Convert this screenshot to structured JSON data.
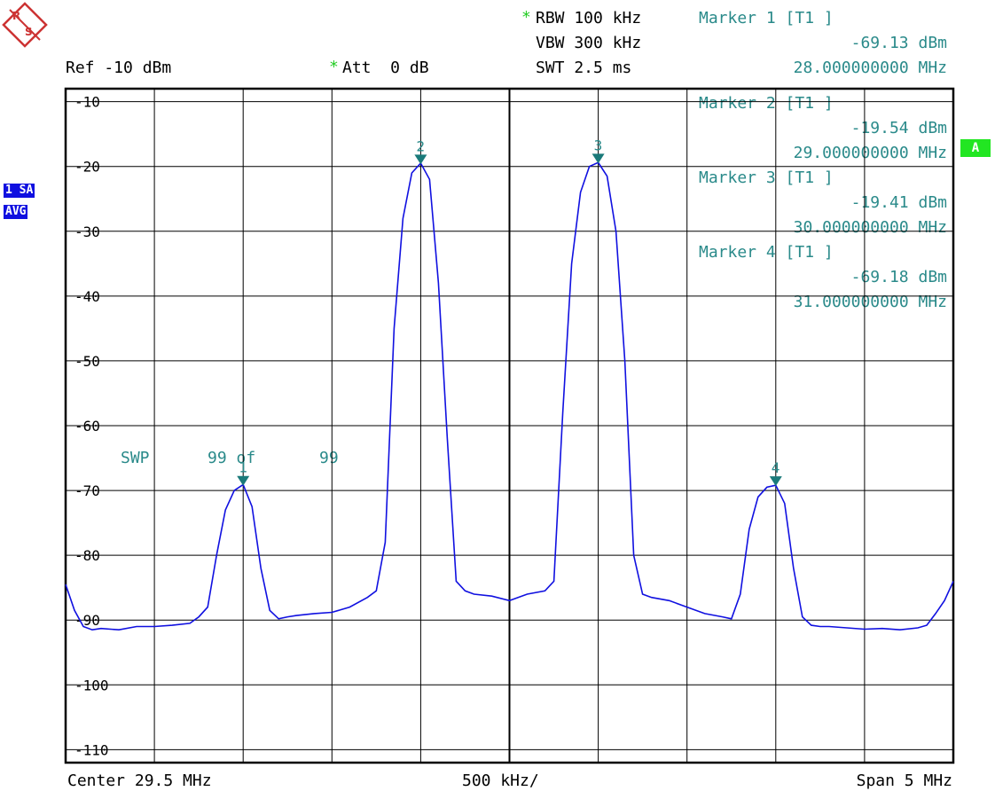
{
  "header": {
    "rbw": "RBW 100 kHz",
    "vbw": "VBW 300 kHz",
    "swt": "SWT 2.5 ms",
    "ref": "Ref -10 dBm",
    "att": "Att  0 dB",
    "star": "*"
  },
  "markers": [
    {
      "label": "Marker 1 [T1 ]",
      "level": "-69.13 dBm",
      "freq": "28.000000000 MHz",
      "num": "1",
      "x_mhz": 28.0,
      "y_dbm": -69.13
    },
    {
      "label": "Marker 2 [T1 ]",
      "level": "-19.54 dBm",
      "freq": "29.000000000 MHz",
      "num": "2",
      "x_mhz": 29.0,
      "y_dbm": -19.54
    },
    {
      "label": "Marker 3 [T1 ]",
      "level": "-19.41 dBm",
      "freq": "30.000000000 MHz",
      "num": "3",
      "x_mhz": 30.0,
      "y_dbm": -19.41
    },
    {
      "label": "Marker 4 [T1 ]",
      "level": "-69.18 dBm",
      "freq": "31.000000000 MHz",
      "num": "4",
      "x_mhz": 31.0,
      "y_dbm": -69.18
    }
  ],
  "sweep": {
    "swp": "SWP",
    "count": "99 of",
    "total": "99"
  },
  "side_badges": {
    "trace": "1 SA",
    "detector": "AVG",
    "status": "A"
  },
  "footer": {
    "center": "Center 29.5 MHz",
    "div": "500 kHz/",
    "span": "Span 5 MHz"
  },
  "colors": {
    "trace": "#1010e0",
    "marker": "#1a7a7a",
    "grid": "#000000",
    "text_teal": "#2a8a8a"
  },
  "chart_data": {
    "type": "line",
    "xlim": [
      27.0,
      32.0
    ],
    "ylim": [
      -112,
      -8
    ],
    "y_ticks": [
      -10,
      -20,
      -30,
      -40,
      -50,
      -60,
      -70,
      -80,
      -90,
      -100,
      -110
    ],
    "y_tick_labels": [
      "-10",
      "-20",
      "-30",
      "-40",
      "-50",
      "-60",
      "-70",
      "-80",
      "-90",
      "-100",
      "-110"
    ],
    "series": [
      {
        "x": [
          27.0,
          27.05,
          27.1,
          27.15,
          27.2,
          27.3,
          27.4,
          27.5,
          27.6,
          27.7,
          27.75,
          27.8,
          27.85,
          27.9,
          27.95,
          28.0,
          28.05,
          28.1,
          28.15,
          28.2,
          28.25,
          28.3,
          28.4,
          28.5,
          28.6,
          28.7,
          28.75,
          28.8,
          28.85,
          28.9,
          28.95,
          29.0,
          29.05,
          29.1,
          29.15,
          29.2,
          29.25,
          29.3,
          29.4,
          29.5,
          29.6,
          29.7,
          29.75,
          29.8,
          29.85,
          29.9,
          29.95,
          30.0,
          30.05,
          30.1,
          30.15,
          30.2,
          30.25,
          30.3,
          30.4,
          30.5,
          30.6,
          30.7,
          30.75,
          30.8,
          30.85,
          30.9,
          30.95,
          31.0,
          31.05,
          31.1,
          31.15,
          31.2,
          31.25,
          31.3,
          31.4,
          31.5,
          31.6,
          31.7,
          31.8,
          31.85,
          31.9,
          31.95,
          32.0
        ],
        "y": [
          -84.5,
          -88.5,
          -91.0,
          -91.5,
          -91.3,
          -91.5,
          -91.0,
          -91.0,
          -90.8,
          -90.5,
          -89.5,
          -88.0,
          -80.0,
          -73.0,
          -70.0,
          -69.1,
          -72.5,
          -82.0,
          -88.5,
          -89.8,
          -89.5,
          -89.3,
          -89.0,
          -88.8,
          -88.0,
          -86.5,
          -85.5,
          -78.0,
          -45.0,
          -28.0,
          -21.0,
          -19.5,
          -22.0,
          -38.0,
          -62.0,
          -84.0,
          -85.5,
          -86.0,
          -86.3,
          -87.0,
          -86.0,
          -85.5,
          -84.0,
          -58.0,
          -35.0,
          -24.0,
          -20.0,
          -19.4,
          -21.5,
          -30.0,
          -50.0,
          -80.0,
          -86.0,
          -86.5,
          -87.0,
          -88.0,
          -89.0,
          -89.5,
          -89.8,
          -86.0,
          -76.0,
          -71.0,
          -69.5,
          -69.2,
          -72.0,
          -82.0,
          -89.5,
          -90.8,
          -91.0,
          -91.0,
          -91.2,
          -91.4,
          -91.3,
          -91.5,
          -91.2,
          -90.8,
          -89.0,
          -87.0,
          -84.0
        ]
      }
    ]
  }
}
